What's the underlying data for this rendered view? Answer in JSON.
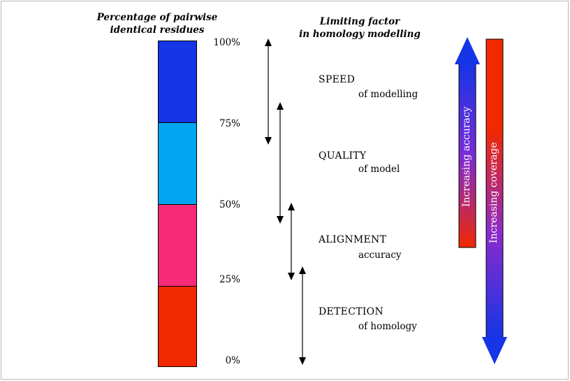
{
  "headers": {
    "left_line1": "Percentage of  pairwise",
    "left_line2": "identical residues",
    "right_line1": "Limiting factor",
    "right_line2": "in homology modelling"
  },
  "scale": {
    "labels": [
      "100%",
      "75%",
      "50%",
      "25%",
      "0%"
    ],
    "segments": [
      {
        "range": "75%-100%",
        "color": "#1535e6"
      },
      {
        "range": "50%-75%",
        "color": "#00a6f2"
      },
      {
        "range": "25%-50%",
        "color": "#f52b78"
      },
      {
        "range": "0%-25%",
        "color": "#f12800"
      }
    ]
  },
  "factors": [
    {
      "main": "SPEED",
      "sub": "of modelling",
      "from_pct": 100,
      "to_pct": 70
    },
    {
      "main": "QUALITY",
      "sub": "of model",
      "from_pct": 80,
      "to_pct": 45
    },
    {
      "main": "ALIGNMENT",
      "sub": "accuracy",
      "from_pct": 50,
      "to_pct": 26
    },
    {
      "main": "DETECTION",
      "sub": "of homology",
      "from_pct": 30,
      "to_pct": 0
    }
  ],
  "bars": {
    "accuracy_label": "Increasing accuracy",
    "coverage_label": "Increasing coverage",
    "accuracy_colors": [
      "#1535e6",
      "#7a2bd6",
      "#f12800"
    ],
    "coverage_colors": [
      "#f12800",
      "#8a2bcc",
      "#1535e6"
    ]
  }
}
